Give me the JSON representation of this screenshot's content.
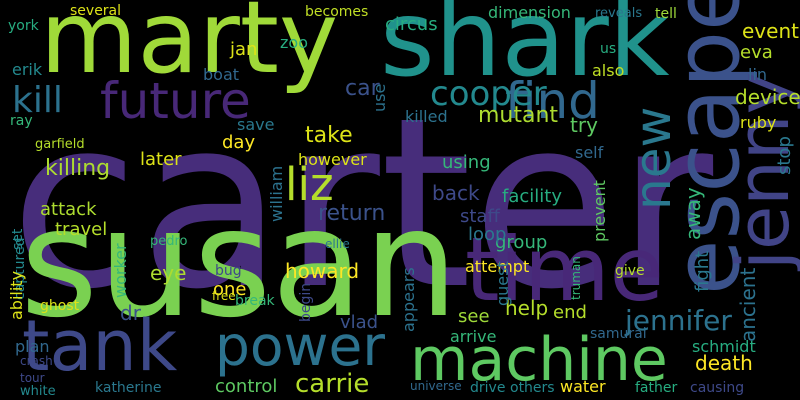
{
  "words": [
    "carter",
    "susan",
    "marty",
    "shark",
    "escape",
    "jenny",
    "time",
    "tank",
    "machine",
    "power",
    "future",
    "find",
    "liz",
    "new",
    "cooper",
    "kill",
    "jennifer",
    "carrie",
    "mutant",
    "killing",
    "attack",
    "travel",
    "later",
    "however",
    "william",
    "return",
    "back",
    "facility",
    "staff",
    "group",
    "using",
    "take",
    "save",
    "day",
    "killed",
    "self",
    "try",
    "away",
    "fight",
    "ancient",
    "device",
    "ruby",
    "lin",
    "eva",
    "event",
    "tell",
    "reveals",
    "us",
    "also",
    "jan",
    "zoo",
    "boat",
    "car",
    "circus",
    "dimension",
    "use",
    "becomes",
    "several",
    "york",
    "erik",
    "ray",
    "garfield",
    "set",
    "captured",
    "ability",
    "ghost",
    "worker",
    "dr",
    "eye",
    "pedro",
    "one",
    "howard",
    "vlad",
    "begin",
    "control",
    "katherine",
    "plan",
    "white",
    "attempt",
    "loop",
    "help",
    "end",
    "see",
    "guest",
    "appears",
    "arrive",
    "death",
    "schmidt",
    "causing",
    "water",
    "father",
    "drive",
    "others",
    "prevent",
    "stop",
    "give",
    "samurai",
    "truman",
    "bug",
    "free",
    "break",
    "ellie",
    "universe",
    "tour",
    "crash"
  ]
}
